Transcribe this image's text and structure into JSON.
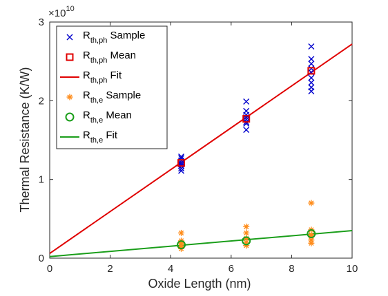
{
  "chart_data": {
    "type": "scatter",
    "xlabel": "Oxide Length (nm)",
    "ylabel": "Thermal Resistance (K/W)",
    "xlim": [
      0,
      10
    ],
    "ylim": [
      0,
      3
    ],
    "xticks": [
      "0",
      "2",
      "4",
      "6",
      "8",
      "10"
    ],
    "yticks": [
      "0",
      "1",
      "2",
      "3"
    ],
    "y_exponent_base": "×10",
    "y_exponent_power": "10",
    "grid": false,
    "legend_position": "top-left",
    "series": [
      {
        "name_main": "R",
        "name_sub": "th,ph",
        "name_tail": "Sample",
        "marker": "x",
        "color": "#0000cc",
        "points": [
          [
            4.35,
            1.29
          ],
          [
            4.35,
            1.27
          ],
          [
            4.35,
            1.24
          ],
          [
            4.35,
            1.21
          ],
          [
            4.35,
            1.19
          ],
          [
            4.35,
            1.17
          ],
          [
            4.35,
            1.14
          ],
          [
            4.35,
            1.11
          ],
          [
            6.5,
            1.99
          ],
          [
            6.5,
            1.87
          ],
          [
            6.5,
            1.82
          ],
          [
            6.5,
            1.79
          ],
          [
            6.5,
            1.76
          ],
          [
            6.5,
            1.73
          ],
          [
            6.5,
            1.71
          ],
          [
            6.5,
            1.63
          ],
          [
            8.65,
            2.69
          ],
          [
            8.65,
            2.53
          ],
          [
            8.65,
            2.47
          ],
          [
            8.65,
            2.41
          ],
          [
            8.65,
            2.36
          ],
          [
            8.65,
            2.29
          ],
          [
            8.65,
            2.23
          ],
          [
            8.65,
            2.17
          ],
          [
            8.65,
            2.12
          ]
        ]
      },
      {
        "name_main": "R",
        "name_sub": "th,ph",
        "name_tail": "Mean",
        "marker": "square",
        "color": "#e00000",
        "points": [
          [
            4.35,
            1.21
          ],
          [
            6.5,
            1.77
          ],
          [
            8.65,
            2.38
          ]
        ]
      },
      {
        "name_main": "R",
        "name_sub": "th,ph",
        "name_tail": "Fit",
        "marker": "line",
        "color": "#e00000",
        "points": [
          [
            0,
            0.06
          ],
          [
            10,
            2.72
          ]
        ]
      },
      {
        "name_main": "R",
        "name_sub": "th,e",
        "name_tail": "Sample",
        "marker": "asterisk",
        "color": "#ff8c1a",
        "points": [
          [
            4.35,
            0.32
          ],
          [
            4.35,
            0.22
          ],
          [
            4.35,
            0.19
          ],
          [
            4.35,
            0.15
          ],
          [
            4.35,
            0.12
          ],
          [
            6.5,
            0.4
          ],
          [
            6.5,
            0.32
          ],
          [
            6.5,
            0.25
          ],
          [
            6.5,
            0.2
          ],
          [
            6.5,
            0.16
          ],
          [
            8.65,
            0.7
          ],
          [
            8.65,
            0.36
          ],
          [
            8.65,
            0.3
          ],
          [
            8.65,
            0.27
          ],
          [
            8.65,
            0.23
          ],
          [
            8.65,
            0.19
          ]
        ]
      },
      {
        "name_main": "R",
        "name_sub": "th,e",
        "name_tail": "Mean",
        "marker": "circle",
        "color": "#1a9e1a",
        "points": [
          [
            4.35,
            0.17
          ],
          [
            6.5,
            0.22
          ],
          [
            8.65,
            0.31
          ]
        ]
      },
      {
        "name_main": "R",
        "name_sub": "th,e",
        "name_tail": "Fit",
        "marker": "line",
        "color": "#1a9e1a",
        "points": [
          [
            0,
            0.02
          ],
          [
            10,
            0.35
          ]
        ]
      }
    ]
  }
}
